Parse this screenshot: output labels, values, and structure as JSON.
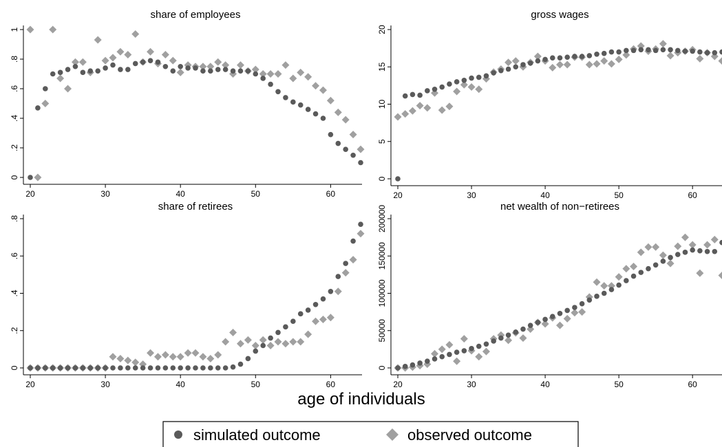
{
  "figure": {
    "x_axis_title": "age of individuals",
    "legend": [
      {
        "label": "simulated outcome",
        "marker": "circle",
        "color": "#5a5a5a"
      },
      {
        "label": "observed outcome",
        "marker": "diamond",
        "color": "#a0a0a0"
      }
    ],
    "legend_position": "bottom-center"
  },
  "chart_data": [
    {
      "type": "scatter",
      "title": "share of employees",
      "xlim": [
        20,
        64
      ],
      "ylim": [
        0,
        1
      ],
      "xticks": [
        "20",
        "30",
        "40",
        "50",
        "60"
      ],
      "yticks": [
        "0",
        ".2",
        ".4",
        ".6",
        ".8",
        "1"
      ],
      "grid": false,
      "x": [
        20,
        21,
        22,
        23,
        24,
        25,
        26,
        27,
        28,
        29,
        30,
        31,
        32,
        33,
        34,
        35,
        36,
        37,
        38,
        39,
        40,
        41,
        42,
        43,
        44,
        45,
        46,
        47,
        48,
        49,
        50,
        51,
        52,
        53,
        54,
        55,
        56,
        57,
        58,
        59,
        60,
        61,
        62,
        63,
        64
      ],
      "series": [
        {
          "name": "simulated outcome",
          "values": [
            0,
            0.47,
            0.6,
            0.7,
            0.71,
            0.73,
            0.75,
            0.71,
            0.72,
            0.72,
            0.74,
            0.76,
            0.73,
            0.73,
            0.77,
            0.78,
            0.79,
            0.78,
            0.75,
            0.72,
            0.75,
            0.74,
            0.74,
            0.72,
            0.72,
            0.73,
            0.73,
            0.72,
            0.72,
            0.72,
            0.7,
            0.67,
            0.63,
            0.58,
            0.54,
            0.51,
            0.49,
            0.46,
            0.43,
            0.4,
            0.29,
            0.23,
            0.19,
            0.15,
            0.1
          ]
        },
        {
          "name": "observed outcome",
          "values": [
            1,
            0,
            0.5,
            1,
            0.67,
            0.6,
            0.78,
            0.78,
            0.71,
            0.93,
            0.79,
            0.81,
            0.85,
            0.83,
            0.97,
            0.78,
            0.85,
            0.77,
            0.83,
            0.79,
            0.71,
            0.76,
            0.75,
            0.75,
            0.75,
            0.78,
            0.76,
            0.7,
            0.76,
            0.72,
            0.73,
            0.7,
            0.7,
            0.7,
            0.76,
            0.67,
            0.71,
            0.68,
            0.62,
            0.59,
            0.52,
            0.44,
            0.39,
            0.29,
            0.19
          ]
        }
      ]
    },
    {
      "type": "scatter",
      "title": "gross wages",
      "xlim": [
        20,
        64
      ],
      "ylim": [
        0,
        20
      ],
      "xticks": [
        "20",
        "30",
        "40",
        "50",
        "60"
      ],
      "yticks": [
        "0",
        "5",
        "10",
        "15",
        "20"
      ],
      "grid": false,
      "x": [
        20,
        21,
        22,
        23,
        24,
        25,
        26,
        27,
        28,
        29,
        30,
        31,
        32,
        33,
        34,
        35,
        36,
        37,
        38,
        39,
        40,
        41,
        42,
        43,
        44,
        45,
        46,
        47,
        48,
        49,
        50,
        51,
        52,
        53,
        54,
        55,
        56,
        57,
        58,
        59,
        60,
        61,
        62,
        63,
        64
      ],
      "series": [
        {
          "name": "simulated outcome",
          "values": [
            0,
            11.1,
            11.3,
            11.2,
            11.8,
            12.0,
            12.3,
            12.7,
            13.0,
            13.2,
            13.5,
            13.6,
            13.8,
            14.2,
            14.5,
            14.7,
            15.0,
            15.3,
            15.5,
            15.8,
            16.0,
            16.2,
            16.2,
            16.3,
            16.4,
            16.4,
            16.5,
            16.7,
            16.8,
            17.0,
            17.0,
            17.2,
            17.2,
            17.3,
            17.3,
            17.2,
            17.3,
            17.3,
            17.2,
            17.1,
            17.1,
            17.0,
            16.9,
            16.9,
            17.0
          ]
        },
        {
          "name": "observed outcome",
          "values": [
            8.3,
            8.7,
            9.1,
            9.8,
            9.5,
            11.5,
            9.2,
            9.7,
            11.7,
            12.6,
            12.3,
            12.0,
            13.4,
            14.3,
            14.7,
            15.6,
            15.8,
            15.0,
            15.6,
            16.4,
            15.8,
            14.9,
            15.3,
            15.3,
            16.3,
            16.3,
            15.3,
            15.4,
            15.8,
            15.4,
            16.0,
            16.6,
            17.4,
            17.8,
            17.1,
            17.4,
            18.1,
            16.5,
            16.9,
            17.1,
            17.3,
            16.1,
            16.9,
            16.4,
            15.8
          ]
        }
      ]
    },
    {
      "type": "scatter",
      "title": "share of retirees",
      "xlim": [
        20,
        64
      ],
      "ylim": [
        0,
        0.8
      ],
      "xticks": [
        "20",
        "30",
        "40",
        "50",
        "60"
      ],
      "yticks": [
        "0",
        ".2",
        ".4",
        ".6",
        ".8"
      ],
      "grid": false,
      "x": [
        20,
        21,
        22,
        23,
        24,
        25,
        26,
        27,
        28,
        29,
        30,
        31,
        32,
        33,
        34,
        35,
        36,
        37,
        38,
        39,
        40,
        41,
        42,
        43,
        44,
        45,
        46,
        47,
        48,
        49,
        50,
        51,
        52,
        53,
        54,
        55,
        56,
        57,
        58,
        59,
        60,
        61,
        62,
        63,
        64
      ],
      "series": [
        {
          "name": "simulated outcome",
          "values": [
            0,
            0,
            0,
            0,
            0,
            0,
            0,
            0,
            0,
            0,
            0,
            0,
            0,
            0,
            0,
            0,
            0,
            0,
            0,
            0,
            0,
            0,
            0,
            0,
            0,
            0,
            0,
            0.005,
            0.02,
            0.05,
            0.09,
            0.12,
            0.16,
            0.19,
            0.22,
            0.25,
            0.29,
            0.31,
            0.34,
            0.37,
            0.41,
            0.49,
            0.56,
            0.68,
            0.77
          ]
        },
        {
          "name": "observed outcome",
          "values": [
            0,
            0,
            0,
            0,
            0,
            0,
            0,
            0,
            0,
            0,
            0,
            0.06,
            0.05,
            0.04,
            0.03,
            0.02,
            0.08,
            0.06,
            0.07,
            0.06,
            0.06,
            0.08,
            0.08,
            0.06,
            0.05,
            0.07,
            0.14,
            0.19,
            0.13,
            0.15,
            0.12,
            0.15,
            0.12,
            0.14,
            0.13,
            0.14,
            0.14,
            0.18,
            0.25,
            0.26,
            0.27,
            0.41,
            0.51,
            0.58,
            0.72
          ]
        }
      ]
    },
    {
      "type": "scatter",
      "title": "net wealth of non−retirees",
      "xlim": [
        20,
        64
      ],
      "ylim": [
        0,
        200000
      ],
      "xticks": [
        "20",
        "30",
        "40",
        "50",
        "60"
      ],
      "yticks": [
        "0",
        "50000",
        "100000",
        "150000",
        "200000"
      ],
      "grid": false,
      "x": [
        20,
        21,
        22,
        23,
        24,
        25,
        26,
        27,
        28,
        29,
        30,
        31,
        32,
        33,
        34,
        35,
        36,
        37,
        38,
        39,
        40,
        41,
        42,
        43,
        44,
        45,
        46,
        47,
        48,
        49,
        50,
        51,
        52,
        53,
        54,
        55,
        56,
        57,
        58,
        59,
        60,
        61,
        62,
        63,
        64
      ],
      "series": [
        {
          "name": "simulated outcome",
          "values": [
            0,
            2000,
            4000,
            6500,
            9000,
            12000,
            15000,
            18000,
            21000,
            23000,
            26000,
            29000,
            32000,
            36000,
            40000,
            44000,
            48000,
            52000,
            57000,
            61000,
            65000,
            69000,
            73000,
            77000,
            81000,
            86000,
            91000,
            96000,
            100000,
            105000,
            111000,
            117000,
            123000,
            128000,
            133000,
            138000,
            143000,
            148000,
            152000,
            155000,
            158000,
            157000,
            156000,
            156000,
            168000
          ]
        },
        {
          "name": "observed outcome",
          "values": [
            0,
            0,
            1000,
            3000,
            5000,
            19000,
            25000,
            31000,
            9000,
            39000,
            23000,
            15000,
            22000,
            39000,
            44000,
            37000,
            47000,
            40000,
            52000,
            61000,
            59000,
            67000,
            57000,
            66000,
            74000,
            75000,
            95000,
            115000,
            110000,
            110000,
            122000,
            133000,
            136000,
            155000,
            162000,
            162000,
            151000,
            140000,
            163000,
            175000,
            165000,
            127000,
            165000,
            172000,
            124000
          ]
        }
      ]
    }
  ]
}
